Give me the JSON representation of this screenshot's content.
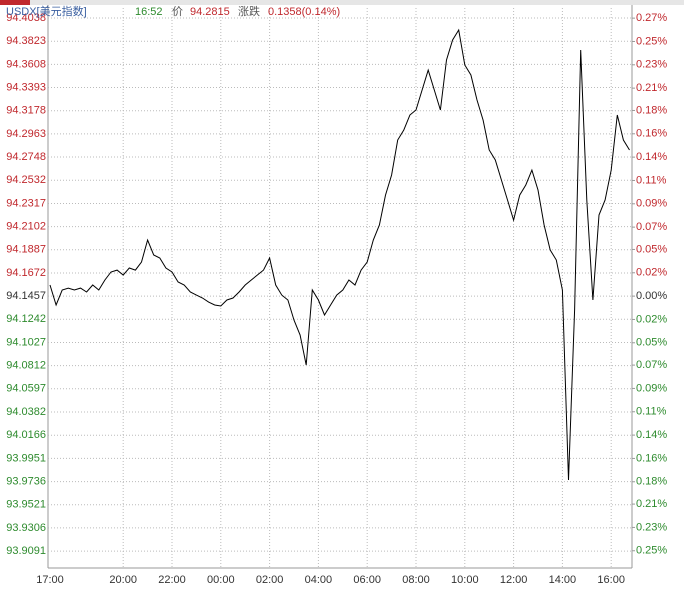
{
  "header": {
    "symbol": "USDX[美元指数]",
    "time": "16:52",
    "price_label": "价",
    "price": "94.2815",
    "change_label": "涨跌",
    "change": "0.1358(0.14%)"
  },
  "chart_data": {
    "type": "line",
    "x": [
      "17:00",
      "17:15",
      "17:30",
      "17:45",
      "18:00",
      "18:15",
      "18:30",
      "18:45",
      "19:00",
      "19:15",
      "19:30",
      "19:45",
      "20:00",
      "20:15",
      "20:30",
      "20:45",
      "21:00",
      "21:15",
      "21:30",
      "21:45",
      "22:00",
      "22:15",
      "22:30",
      "22:45",
      "23:00",
      "23:15",
      "23:30",
      "23:45",
      "00:00",
      "00:15",
      "00:30",
      "00:45",
      "01:00",
      "01:15",
      "01:30",
      "01:45",
      "02:00",
      "02:15",
      "02:30",
      "02:45",
      "03:00",
      "03:15",
      "03:30",
      "03:45",
      "04:00",
      "04:15",
      "04:30",
      "04:45",
      "05:00",
      "05:15",
      "05:30",
      "05:45",
      "06:00",
      "06:15",
      "06:30",
      "06:45",
      "07:00",
      "07:15",
      "07:30",
      "07:45",
      "08:00",
      "08:15",
      "08:30",
      "08:45",
      "09:00",
      "09:15",
      "09:30",
      "09:45",
      "10:00",
      "10:15",
      "10:30",
      "10:45",
      "11:00",
      "11:15",
      "11:30",
      "11:45",
      "12:00",
      "12:15",
      "12:30",
      "12:45",
      "13:00",
      "13:15",
      "13:30",
      "13:45",
      "14:00",
      "14:15",
      "14:30",
      "14:45",
      "15:00",
      "15:15",
      "15:30",
      "15:45",
      "16:00",
      "16:15",
      "16:30",
      "16:45"
    ],
    "series": [
      {
        "name": "USDX",
        "color": "#000000",
        "values": [
          94.156,
          94.1375,
          94.1514,
          94.1532,
          94.1514,
          94.1532,
          94.1495,
          94.156,
          94.1514,
          94.1607,
          94.1681,
          94.1699,
          94.1653,
          94.1718,
          94.1699,
          94.1774,
          94.1978,
          94.1839,
          94.1811,
          94.1718,
          94.1681,
          94.1588,
          94.156,
          94.1495,
          94.1467,
          94.144,
          94.1402,
          94.1375,
          94.1365,
          94.1421,
          94.144,
          94.1495,
          94.156,
          94.1607,
          94.1653,
          94.1699,
          94.1811,
          94.156,
          94.1467,
          94.1421,
          94.1235,
          94.1096,
          94.0818,
          94.1514,
          94.1421,
          94.1282,
          94.1375,
          94.1467,
          94.1514,
          94.1607,
          94.156,
          94.1699,
          94.1774,
          94.1978,
          94.2117,
          94.2395,
          94.2581,
          94.2906,
          94.2999,
          94.3138,
          94.3184,
          94.337,
          94.3555,
          94.337,
          94.3184,
          94.3648,
          94.3834,
          94.3927,
          94.3602,
          94.3509,
          94.3277,
          94.3091,
          94.2813,
          94.272,
          94.2535,
          94.2349,
          94.2163,
          94.2395,
          94.2488,
          94.2627,
          94.2442,
          94.2117,
          94.1885,
          94.1792,
          94.1514,
          93.9751,
          94.1328,
          94.3741,
          94.2349,
          94.1421,
          94.221,
          94.2349,
          94.2627,
          94.3138,
          94.2906,
          94.2813
        ]
      }
    ],
    "xticks": [
      "17:00",
      "20:00",
      "22:00",
      "00:00",
      "02:00",
      "04:00",
      "06:00",
      "08:00",
      "10:00",
      "12:00",
      "14:00",
      "16:00"
    ],
    "ylim": [
      93.8934,
      94.4131
    ],
    "yticks": [
      94.4038,
      94.3823,
      94.3608,
      94.3393,
      94.3178,
      94.2963,
      94.2748,
      94.2532,
      94.2317,
      94.2102,
      94.1887,
      94.1672,
      94.1457,
      94.1242,
      94.1027,
      94.0812,
      94.0597,
      94.0382,
      94.0166,
      93.9951,
      93.9736,
      93.9521,
      93.9306,
      93.9091
    ],
    "y2lim": [
      -0.268,
      0.284
    ],
    "y2ticks": [
      {
        "value": 0.274,
        "label": "0.27%"
      },
      {
        "value": 0.251,
        "label": "0.25%"
      },
      {
        "value": 0.228,
        "label": "0.23%"
      },
      {
        "value": 0.205,
        "label": "0.21%"
      },
      {
        "value": 0.183,
        "label": "0.18%"
      },
      {
        "value": 0.16,
        "label": "0.16%"
      },
      {
        "value": 0.137,
        "label": "0.14%"
      },
      {
        "value": 0.114,
        "label": "0.11%"
      },
      {
        "value": 0.091,
        "label": "0.09%"
      },
      {
        "value": 0.068,
        "label": "0.07%"
      },
      {
        "value": 0.046,
        "label": "0.05%"
      },
      {
        "value": 0.023,
        "label": "0.02%"
      },
      {
        "value": 0,
        "label": "0.00%"
      },
      {
        "value": -0.023,
        "label": "0.02%"
      },
      {
        "value": -0.046,
        "label": "0.05%"
      },
      {
        "value": -0.068,
        "label": "0.07%"
      },
      {
        "value": -0.091,
        "label": "0.09%"
      },
      {
        "value": -0.114,
        "label": "0.11%"
      },
      {
        "value": -0.137,
        "label": "0.14%"
      },
      {
        "value": -0.16,
        "label": "0.16%"
      },
      {
        "value": -0.183,
        "label": "0.18%"
      },
      {
        "value": -0.205,
        "label": "0.21%"
      },
      {
        "value": -0.228,
        "label": "0.23%"
      },
      {
        "value": -0.251,
        "label": "0.25%"
      }
    ],
    "grid": true,
    "up_color": "#c0282d",
    "down_color": "#2e8b2e"
  }
}
